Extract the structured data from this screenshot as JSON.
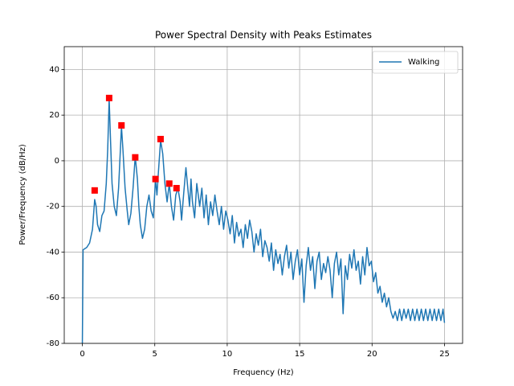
{
  "chart_data": {
    "type": "line",
    "title": "Power Spectral Density with Peaks Estimates",
    "x_label": "Frequency (Hz)",
    "y_label": "Power/Frequency (dB/Hz)",
    "xlim": [
      -1.25,
      26.25
    ],
    "xticks": [
      0,
      5,
      10,
      15,
      20,
      25
    ],
    "ylim": [
      -80,
      50
    ],
    "yticks": [
      -80,
      -60,
      -40,
      -20,
      0,
      20,
      40
    ],
    "grid": true,
    "legend": "upper right",
    "series": [
      {
        "name": "Walking",
        "color": "#1f77b4",
        "x": [
          0,
          0.05,
          0.3,
          0.5,
          0.7,
          0.85,
          0.95,
          1.05,
          1.2,
          1.35,
          1.5,
          1.65,
          1.75,
          1.85,
          1.95,
          2.05,
          2.2,
          2.35,
          2.5,
          2.7,
          2.8,
          2.95,
          3.1,
          3.2,
          3.35,
          3.5,
          3.65,
          3.8,
          3.9,
          4.0,
          4.15,
          4.3,
          4.45,
          4.6,
          4.75,
          4.9,
          5.05,
          5.15,
          5.25,
          5.4,
          5.55,
          5.7,
          5.85,
          6.0,
          6.15,
          6.3,
          6.45,
          6.6,
          6.75,
          6.85,
          7.0,
          7.15,
          7.25,
          7.4,
          7.5,
          7.6,
          7.75,
          7.9,
          8.0,
          8.1,
          8.25,
          8.4,
          8.55,
          8.7,
          8.85,
          9.0,
          9.15,
          9.3,
          9.45,
          9.6,
          9.75,
          9.9,
          10.05,
          10.2,
          10.35,
          10.5,
          10.65,
          10.8,
          10.95,
          11.1,
          11.25,
          11.4,
          11.55,
          11.7,
          11.85,
          12.0,
          12.15,
          12.3,
          12.45,
          12.6,
          12.75,
          12.9,
          13.05,
          13.2,
          13.35,
          13.5,
          13.65,
          13.8,
          13.95,
          14.1,
          14.25,
          14.4,
          14.55,
          14.7,
          14.85,
          15.0,
          15.15,
          15.3,
          15.45,
          15.6,
          15.75,
          15.9,
          16.05,
          16.2,
          16.35,
          16.5,
          16.65,
          16.8,
          16.95,
          17.1,
          17.25,
          17.4,
          17.55,
          17.7,
          17.85,
          18.0,
          18.15,
          18.3,
          18.45,
          18.6,
          18.75,
          18.9,
          19.05,
          19.2,
          19.35,
          19.5,
          19.65,
          19.8,
          19.95,
          20.1,
          20.25,
          20.4,
          20.55,
          20.7,
          20.85,
          21.0,
          21.15,
          21.3,
          21.45,
          21.6,
          21.75,
          21.9,
          22.05,
          22.2,
          22.35,
          22.5,
          22.65,
          22.8,
          22.95,
          23.1,
          23.25,
          23.4,
          23.55,
          23.7,
          23.85,
          24.0,
          24.15,
          24.3,
          24.45,
          24.6,
          24.75,
          24.9,
          25.0
        ],
        "values": [
          -80,
          -39,
          -38,
          -36,
          -30,
          -17,
          -20,
          -28,
          -31,
          -24,
          -22,
          -10,
          5,
          27,
          8,
          -10,
          -20,
          -24,
          -12,
          15,
          5,
          -12,
          -22,
          -28,
          -23,
          -12,
          2,
          -8,
          -20,
          -28,
          -34,
          -30,
          -20,
          -15,
          -22,
          -25,
          -8,
          -15,
          -5,
          9,
          3,
          -10,
          -18,
          -10,
          -20,
          -26,
          -15,
          -12,
          -18,
          -26,
          -14,
          -3,
          -10,
          -20,
          -8,
          -18,
          -25,
          -10,
          -15,
          -20,
          -12,
          -25,
          -15,
          -28,
          -18,
          -24,
          -15,
          -22,
          -28,
          -20,
          -30,
          -22,
          -26,
          -32,
          -24,
          -36,
          -27,
          -33,
          -30,
          -38,
          -28,
          -34,
          -26,
          -31,
          -40,
          -32,
          -37,
          -30,
          -42,
          -35,
          -38,
          -44,
          -36,
          -48,
          -39,
          -45,
          -41,
          -50,
          -42,
          -37,
          -47,
          -40,
          -52,
          -44,
          -39,
          -50,
          -43,
          -62,
          -46,
          -38,
          -48,
          -42,
          -56,
          -44,
          -40,
          -52,
          -45,
          -49,
          -42,
          -48,
          -60,
          -45,
          -40,
          -50,
          -43,
          -67,
          -46,
          -52,
          -41,
          -47,
          -39,
          -48,
          -44,
          -54,
          -42,
          -50,
          -38,
          -46,
          -44,
          -53,
          -49,
          -58,
          -55,
          -62,
          -58,
          -64,
          -60,
          -66,
          -69,
          -66,
          -70,
          -65,
          -70,
          -65,
          -69,
          -65,
          -70,
          -65,
          -70,
          -65,
          -70,
          -65,
          -70,
          -65,
          -70,
          -65,
          -70,
          -65,
          -70,
          -65,
          -70,
          -65,
          -71
        ]
      },
      {
        "color": "#ff0000",
        "marker": "square",
        "x": [
          0.85,
          1.85,
          2.7,
          3.65,
          5.05,
          5.4,
          6.0,
          6.5
        ],
        "values": [
          -13,
          27.5,
          15.5,
          1.5,
          -8,
          9.5,
          -10,
          -12
        ]
      }
    ]
  }
}
